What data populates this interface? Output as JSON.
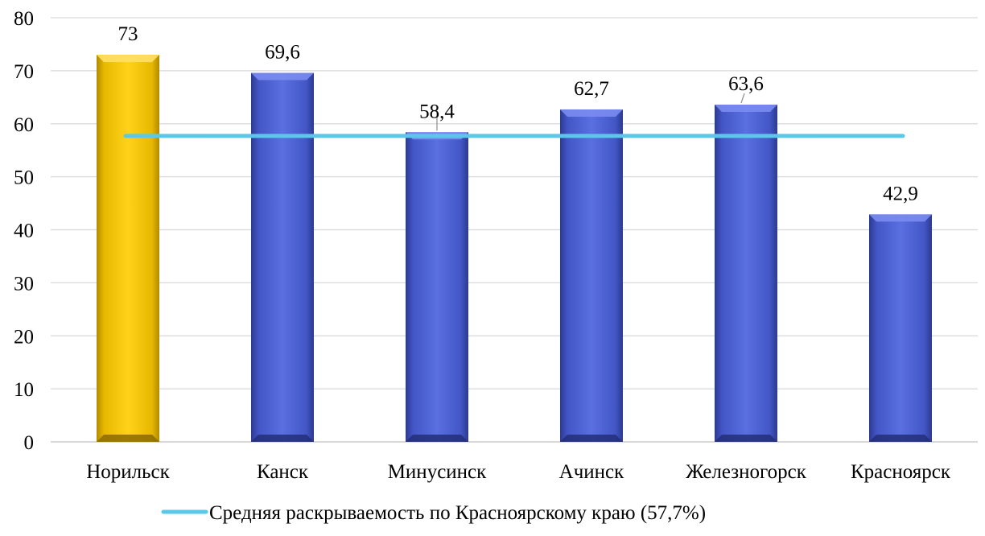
{
  "chart_data": {
    "type": "bar",
    "categories": [
      "Норильск",
      "Канск",
      "Минусинск",
      "Ачинск",
      "Железногорск",
      "Красноярск"
    ],
    "values": [
      73,
      69.6,
      58.4,
      62.7,
      63.6,
      42.9
    ],
    "value_labels": [
      "73",
      "69,6",
      "58,4",
      "62,7",
      "63,6",
      "42,9"
    ],
    "ylim": [
      0,
      80
    ],
    "yticks": [
      0,
      10,
      20,
      30,
      40,
      50,
      60,
      70,
      80
    ],
    "ytick_labels": [
      "0",
      "10",
      "20",
      "30",
      "40",
      "50",
      "60",
      "70",
      "80"
    ],
    "grid": true,
    "legend_position": "bottom",
    "reference_line": {
      "name": "Средняя раскрываемость по Красноярскому краю (57,7%)",
      "value": 57.7,
      "color": "#5bc8ea"
    },
    "colors": {
      "highlight_bar": "#f5c400",
      "bar": "#4a5fcf",
      "grid": "#d9d9d9",
      "axis": "#bfbfbf",
      "text": "#000000"
    },
    "highlight_index": 0
  }
}
